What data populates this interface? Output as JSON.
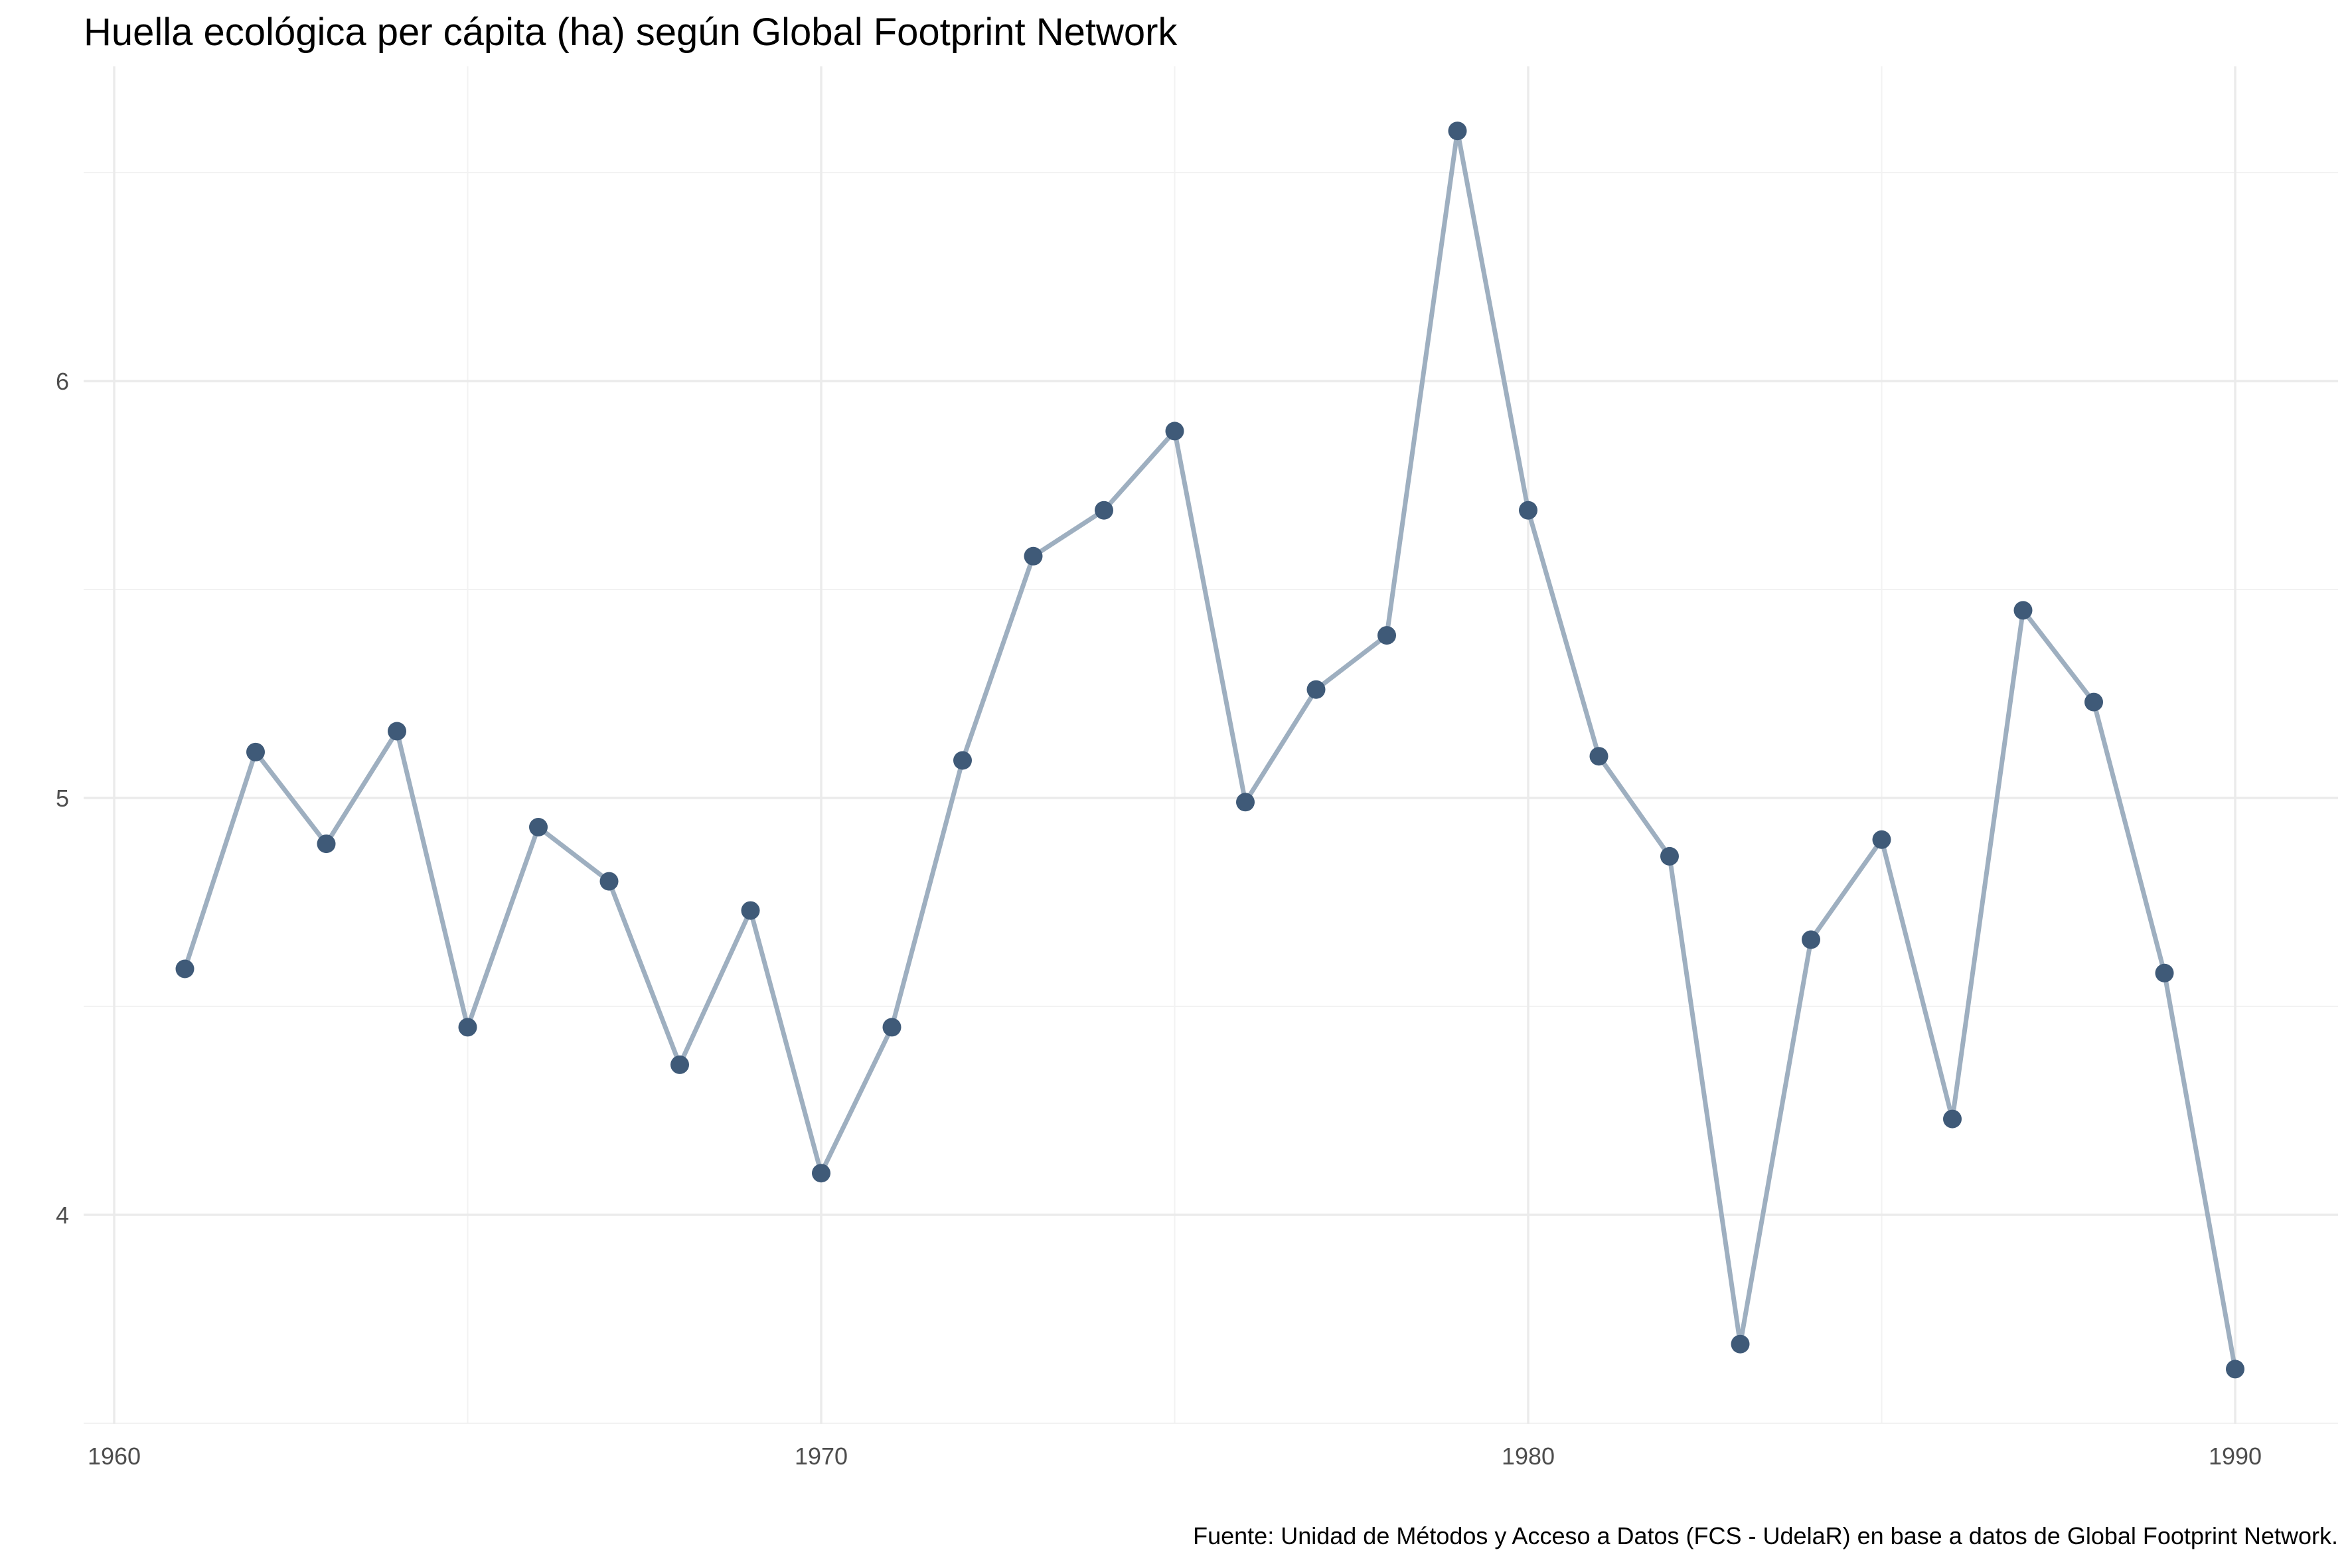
{
  "chart_data": {
    "type": "line",
    "title": "Huella ecológica per cápita (ha) según Global Footprint Network",
    "caption": "Fuente: Unidad de Métodos y Acceso a Datos (FCS - UdelaR) en base a datos de Global Footprint Network.",
    "xlabel": "",
    "ylabel": "",
    "xlim": [
      1960,
      1991
    ],
    "ylim": [
      3.5,
      6.7
    ],
    "x_ticks": [
      1960,
      1970,
      1980,
      1990
    ],
    "x_tick_labels": [
      "1960",
      "1970",
      "1980",
      "1990"
    ],
    "x_minor_ticks": [
      1965,
      1975,
      1985
    ],
    "y_ticks": [
      4,
      5,
      6
    ],
    "y_tick_labels": [
      "4",
      "5",
      "6"
    ],
    "y_minor_ticks": [
      3.5,
      4.5,
      5.5,
      6.5
    ],
    "grid": true,
    "legend": "none",
    "line_color": "#9eafc0",
    "point_color": "#3f5a78",
    "x": [
      1961,
      1962,
      1963,
      1964,
      1965,
      1966,
      1967,
      1968,
      1969,
      1970,
      1971,
      1972,
      1973,
      1974,
      1975,
      1976,
      1977,
      1978,
      1979,
      1980,
      1981,
      1982,
      1983,
      1984,
      1985,
      1986,
      1987,
      1988,
      1989,
      1990
    ],
    "values": [
      4.59,
      5.11,
      4.89,
      5.16,
      4.45,
      4.93,
      4.8,
      4.36,
      4.73,
      4.1,
      4.45,
      5.09,
      5.58,
      5.69,
      5.88,
      4.99,
      5.26,
      5.39,
      6.6,
      5.69,
      5.1,
      4.86,
      3.69,
      4.66,
      4.9,
      4.23,
      5.45,
      5.23,
      4.58,
      3.63
    ]
  }
}
